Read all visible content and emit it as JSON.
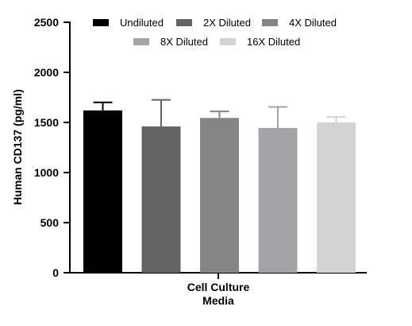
{
  "chart_data": {
    "type": "bar",
    "title": "",
    "xlabel_lines": [
      "Cell  Culture",
      "Media"
    ],
    "ylabel": "Human CD137 (pg/ml)",
    "ylim": [
      0,
      2500
    ],
    "yticks": [
      "0",
      "500",
      "1000",
      "1500",
      "2000",
      "2500"
    ],
    "ytick_values": [
      0,
      500,
      1000,
      1500,
      2000,
      2500
    ],
    "grid": false,
    "legend_position": "top",
    "series": [
      {
        "name": "Undiluted",
        "value": 1620,
        "error": 80,
        "color": "#000000"
      },
      {
        "name": "2X Diluted",
        "value": 1460,
        "error": 265,
        "color": "#636363"
      },
      {
        "name": "4X Diluted",
        "value": 1545,
        "error": 65,
        "color": "#858585"
      },
      {
        "name": "8X Diluted",
        "value": 1445,
        "error": 210,
        "color": "#a4a4a8"
      },
      {
        "name": "16X Diluted",
        "value": 1500,
        "error": 55,
        "color": "#d3d3d3"
      }
    ]
  }
}
